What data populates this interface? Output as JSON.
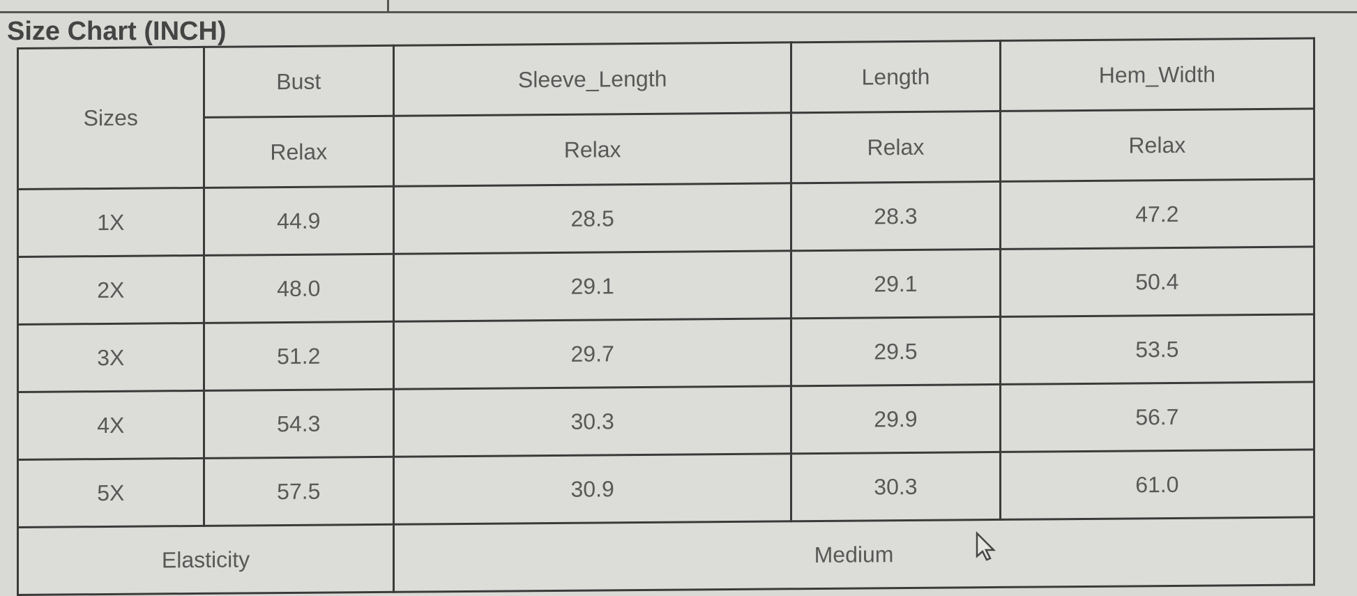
{
  "title": "Size Chart (INCH)",
  "headers": {
    "sizes": "Sizes",
    "columns": [
      "Bust",
      "Sleeve_Length",
      "Length",
      "Hem_Width"
    ],
    "sub": [
      "Relax",
      "Relax",
      "Relax",
      "Relax"
    ]
  },
  "rows": [
    {
      "size": "1X",
      "values": [
        "44.9",
        "28.5",
        "28.3",
        "47.2"
      ]
    },
    {
      "size": "2X",
      "values": [
        "48.0",
        "29.1",
        "29.1",
        "50.4"
      ]
    },
    {
      "size": "3X",
      "values": [
        "51.2",
        "29.7",
        "29.5",
        "53.5"
      ]
    },
    {
      "size": "4X",
      "values": [
        "54.3",
        "30.3",
        "29.9",
        "56.7"
      ]
    },
    {
      "size": "5X",
      "values": [
        "57.5",
        "30.9",
        "30.3",
        "61.0"
      ]
    }
  ],
  "footer": {
    "label": "Elasticity",
    "value": "Medium"
  },
  "icons": {
    "cursor": "mouse-pointer-icon"
  }
}
